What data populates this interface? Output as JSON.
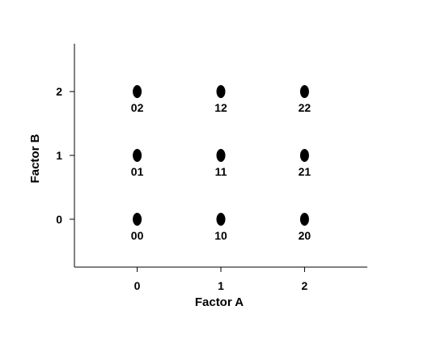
{
  "chart_data": {
    "type": "scatter",
    "title": "",
    "xlabel": "Factor A",
    "ylabel": "Factor B",
    "xlim": [
      -0.75,
      2.75
    ],
    "ylim": [
      -0.75,
      2.75
    ],
    "xticks": [
      0,
      1,
      2
    ],
    "yticks": [
      0,
      1,
      2
    ],
    "xtick_labels": [
      "0",
      "1",
      "2"
    ],
    "ytick_labels": [
      "0",
      "1",
      "2"
    ],
    "grid": false,
    "legend": "none",
    "marker_color": "#000000",
    "points": [
      {
        "x": 0,
        "y": 0,
        "label": "00"
      },
      {
        "x": 1,
        "y": 0,
        "label": "10"
      },
      {
        "x": 2,
        "y": 0,
        "label": "20"
      },
      {
        "x": 0,
        "y": 1,
        "label": "01"
      },
      {
        "x": 1,
        "y": 1,
        "label": "11"
      },
      {
        "x": 2,
        "y": 1,
        "label": "21"
      },
      {
        "x": 0,
        "y": 2,
        "label": "02"
      },
      {
        "x": 1,
        "y": 2,
        "label": "12"
      },
      {
        "x": 2,
        "y": 2,
        "label": "22"
      }
    ]
  }
}
